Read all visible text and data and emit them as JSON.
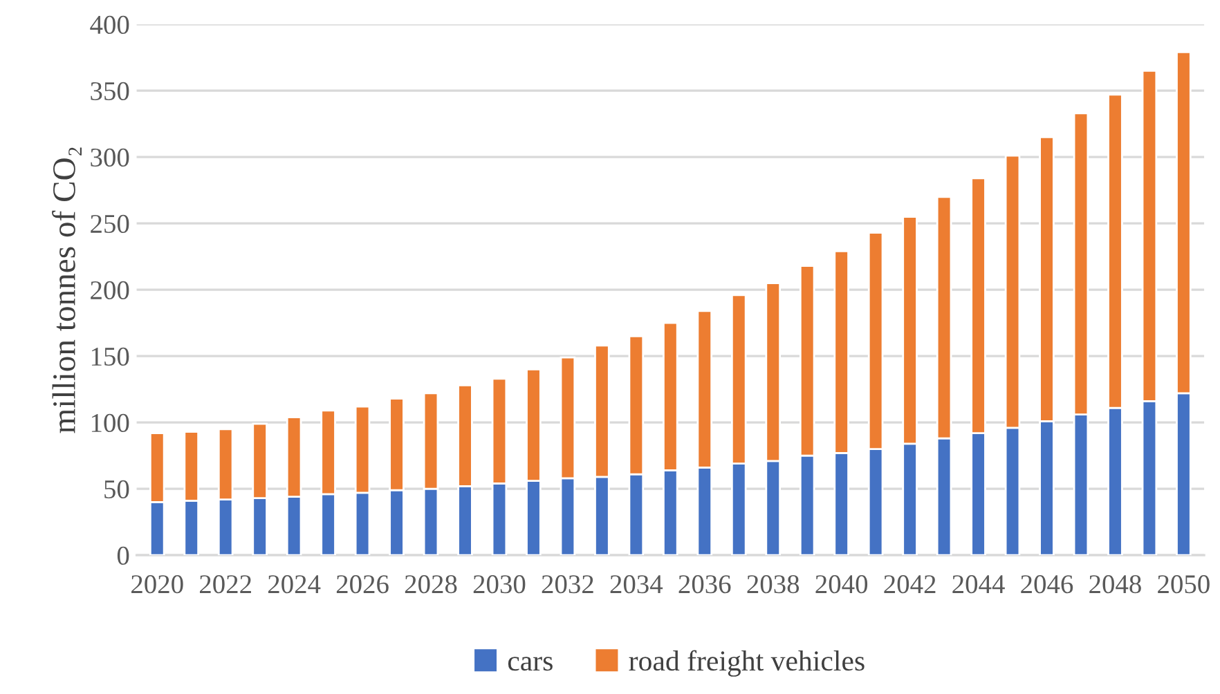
{
  "chart_data": {
    "type": "bar",
    "stacked": true,
    "ylabel": "million tonnes of CO₂",
    "categories": [
      "2020",
      null,
      "2022",
      null,
      "2024",
      null,
      "2026",
      null,
      "2028",
      null,
      "2030",
      null,
      "2032",
      null,
      "2034",
      null,
      "2036",
      null,
      "2038",
      null,
      "2040",
      null,
      "2042",
      null,
      "2044",
      null,
      "2046",
      null,
      "2048",
      null,
      "2050"
    ],
    "series": [
      {
        "name": "cars",
        "color": "#4472c4",
        "values": [
          40,
          41,
          42,
          43,
          44,
          46,
          47,
          49,
          50,
          52,
          54,
          56,
          58,
          59,
          61,
          64,
          66,
          69,
          71,
          75,
          77,
          80,
          84,
          88,
          92,
          96,
          101,
          106,
          111,
          116,
          122
        ]
      },
      {
        "name": "road freight vehicles",
        "color": "#ed7d31",
        "values": [
          52,
          52,
          53,
          56,
          60,
          63,
          65,
          69,
          72,
          76,
          79,
          84,
          91,
          99,
          104,
          111,
          118,
          127,
          134,
          143,
          152,
          163,
          171,
          182,
          192,
          205,
          214,
          227,
          236,
          249,
          257
        ]
      }
    ],
    "ylim": [
      0,
      400
    ],
    "yticks": [
      0,
      50,
      100,
      150,
      200,
      250,
      300,
      350,
      400
    ],
    "grid": "y",
    "legend": "bottom"
  }
}
